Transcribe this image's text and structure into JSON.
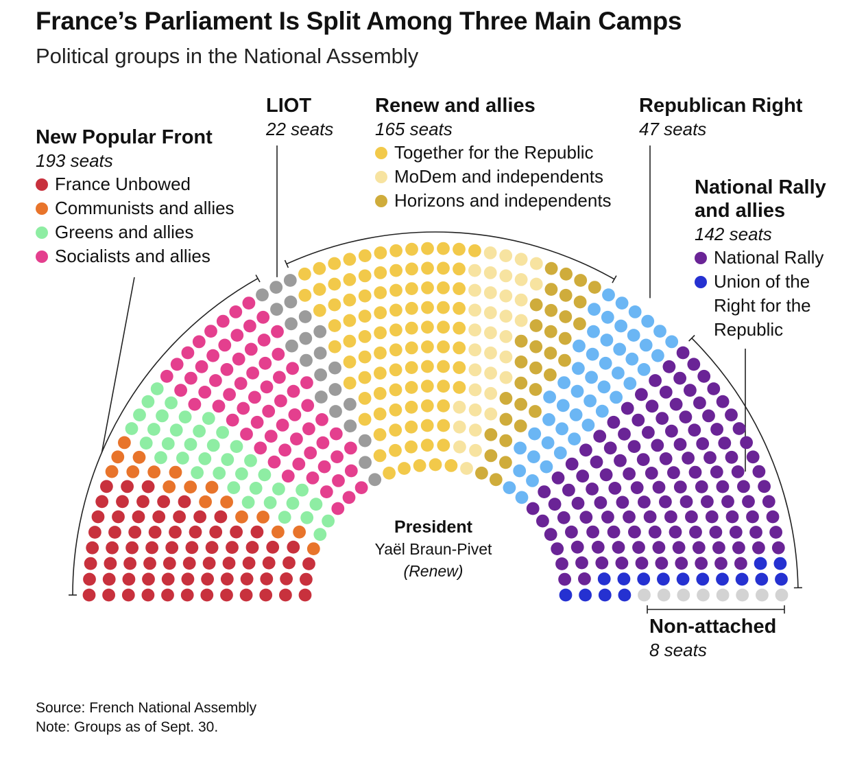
{
  "title": "France’s Parliament Is Split Among Three Main Camps",
  "subtitle": "Political groups in the National Assembly",
  "chart_data": {
    "type": "parliament-hemicycle",
    "total_seats": 577,
    "rows": 12,
    "groups": [
      {
        "name": "New Popular Front",
        "seats_label": "193 seats",
        "total": 193,
        "parties": [
          {
            "name": "France Unbowed",
            "seats": 71,
            "color": "#C8313D"
          },
          {
            "name": "Communists and allies",
            "seats": 17,
            "color": "#E8742B"
          },
          {
            "name": "Greens and allies",
            "seats": 38,
            "color": "#8EEDA3"
          },
          {
            "name": "Socialists and allies",
            "seats": 67,
            "color": "#E43F8E"
          }
        ]
      },
      {
        "name": "LIOT",
        "seats_label": "22 seats",
        "total": 22,
        "parties": [
          {
            "name": "LIOT",
            "seats": 22,
            "color": "#9B9B9B"
          }
        ]
      },
      {
        "name": "Renew and allies",
        "seats_label": "165 seats",
        "total": 165,
        "parties": [
          {
            "name": "Together for the Republic",
            "seats": 95,
            "color": "#F2C94A"
          },
          {
            "name": "MoDem and independents",
            "seats": 36,
            "color": "#F7E3A0"
          },
          {
            "name": "Horizons and independents",
            "seats": 34,
            "color": "#CFAC3B"
          }
        ]
      },
      {
        "name": "Republican Right",
        "seats_label": "47 seats",
        "total": 47,
        "parties": [
          {
            "name": "Republican Right",
            "seats": 47,
            "color": "#6BB6F4"
          }
        ]
      },
      {
        "name": "National Rally and allies",
        "name_lines": [
          "National Rally",
          "and allies"
        ],
        "seats_label": "142 seats",
        "total": 142,
        "parties": [
          {
            "name": "National Rally",
            "seats": 126,
            "color": "#6A2496"
          },
          {
            "name": "Union of the Right for the Republic",
            "name_lines": [
              "Union of the",
              "Right for the",
              "Republic"
            ],
            "seats": 16,
            "color": "#2531D1"
          }
        ]
      },
      {
        "name": "Non-attached",
        "seats_label": "8 seats",
        "total": 8,
        "parties": [
          {
            "name": "Non-attached",
            "seats": 8,
            "color": "#D3D3D3"
          }
        ]
      }
    ]
  },
  "president": {
    "title": "President",
    "name": "Yaël Braun-Pivet",
    "group": "(Renew)"
  },
  "footer": {
    "source": "Source: French National Assembly",
    "note": "Note: Groups as of Sept. 30."
  }
}
